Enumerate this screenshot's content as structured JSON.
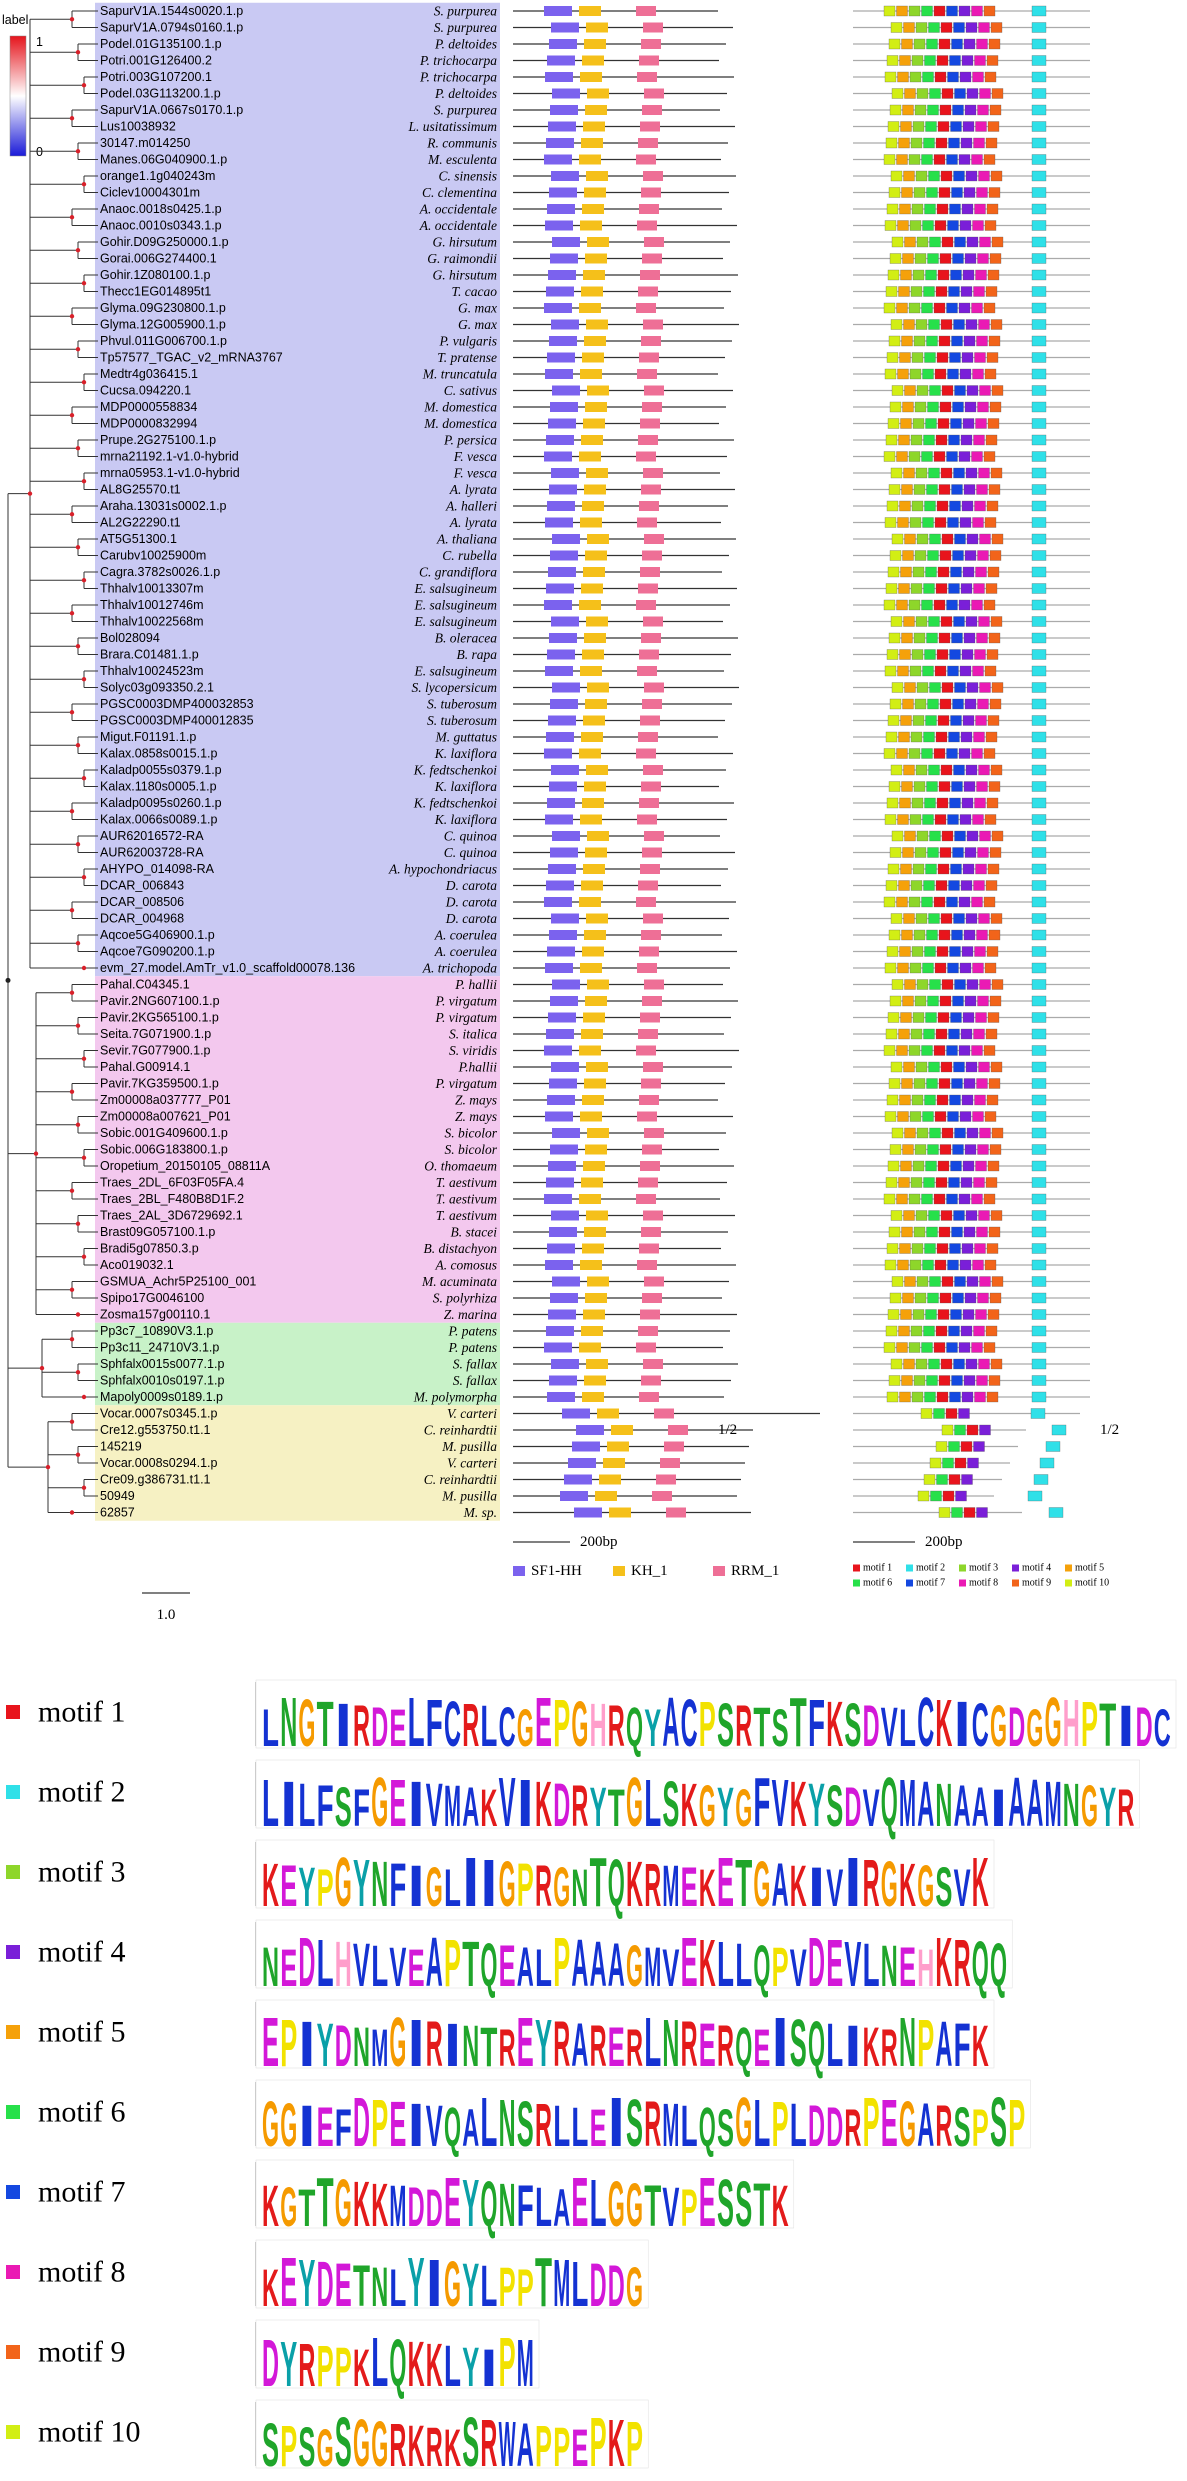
{
  "color_scale": {
    "title": "label",
    "max": 1,
    "min": 0
  },
  "groups": [
    {
      "color": "#c9c9f3",
      "rows": [
        {
          "gene": "SapurV1A.1544s0020.1.p",
          "species": "S. purpurea"
        },
        {
          "gene": "SapurV1A.0794s0160.1.p",
          "species": "S. purpurea"
        },
        {
          "gene": "Podel.01G135100.1.p",
          "species": "P. deltoides"
        },
        {
          "gene": "Potri.001G126400.2",
          "species": "P. trichocarpa"
        },
        {
          "gene": "Potri.003G107200.1",
          "species": "P. trichocarpa"
        },
        {
          "gene": "Podel.03G113200.1.p",
          "species": "P. deltoides"
        },
        {
          "gene": "SapurV1A.0667s0170.1.p",
          "species": "S. purpurea"
        },
        {
          "gene": "Lus10038932",
          "species": "L. usitatissimum"
        },
        {
          "gene": "30147.m014250",
          "species": "R. communis"
        },
        {
          "gene": "Manes.06G040900.1.p",
          "species": "M. esculenta"
        },
        {
          "gene": "orange1.1g040243m",
          "species": "C. sinensis"
        },
        {
          "gene": "Ciclev10004301m",
          "species": "C. clementina"
        },
        {
          "gene": "Anaoc.0018s0425.1.p",
          "species": "A. occidentale"
        },
        {
          "gene": "Anaoc.0010s0343.1.p",
          "species": "A. occidentale"
        },
        {
          "gene": "Gohir.D09G250000.1.p",
          "species": "G. hirsutum"
        },
        {
          "gene": "Gorai.006G274400.1",
          "species": "G. raimondii"
        },
        {
          "gene": "Gohir.1Z080100.1.p",
          "species": "G. hirsutum"
        },
        {
          "gene": "Thecc1EG014895t1",
          "species": "T. cacao"
        },
        {
          "gene": "Glyma.09G230800.1.p",
          "species": "G. max"
        },
        {
          "gene": "Glyma.12G005900.1.p",
          "species": "G. max"
        },
        {
          "gene": "Phvul.011G006700.1.p",
          "species": "P. vulgaris"
        },
        {
          "gene": "Tp57577_TGAC_v2_mRNA3767",
          "species": "T. pratense"
        },
        {
          "gene": "Medtr4g036415.1",
          "species": "M. truncatula"
        },
        {
          "gene": "Cucsa.094220.1",
          "species": "C. sativus"
        },
        {
          "gene": "MDP0000558834",
          "species": "M. domestica"
        },
        {
          "gene": "MDP0000832994",
          "species": "M. domestica"
        },
        {
          "gene": "Prupe.2G275100.1.p",
          "species": "P. persica"
        },
        {
          "gene": "mrna21192.1-v1.0-hybrid",
          "species": "F. vesca"
        },
        {
          "gene": "mrna05953.1-v1.0-hybrid",
          "species": "F. vesca"
        },
        {
          "gene": "AL8G25570.t1",
          "species": "A. lyrata"
        },
        {
          "gene": "Araha.13031s0002.1.p",
          "species": "A. halleri"
        },
        {
          "gene": "AL2G22290.t1",
          "species": "A. lyrata"
        },
        {
          "gene": "AT5G51300.1",
          "species": "A. thaliana"
        },
        {
          "gene": "Carubv10025900m",
          "species": "C. rubella"
        },
        {
          "gene": "Cagra.3782s0026.1.p",
          "species": "C. grandiflora"
        },
        {
          "gene": "Thhalv10013307m",
          "species": "E. salsugineum"
        },
        {
          "gene": "Thhalv10012746m",
          "species": "E. salsugineum"
        },
        {
          "gene": "Thhalv10022568m",
          "species": "E. salsugineum"
        },
        {
          "gene": "Bol028094",
          "species": "B. oleracea"
        },
        {
          "gene": "Brara.C01481.1.p",
          "species": "B. rapa"
        },
        {
          "gene": "Thhalv10024523m",
          "species": "E. salsugineum"
        },
        {
          "gene": "Solyc03g093350.2.1",
          "species": "S. lycopersicum"
        },
        {
          "gene": "PGSC0003DMP400032853",
          "species": "S. tuberosum"
        },
        {
          "gene": "PGSC0003DMP400012835",
          "species": "S. tuberosum"
        },
        {
          "gene": "Migut.F01191.1.p",
          "species": "M. guttatus"
        },
        {
          "gene": "Kalax.0858s0015.1.p",
          "species": "K. laxiflora"
        },
        {
          "gene": "Kaladp0055s0379.1.p",
          "species": "K. fedtschenkoi"
        },
        {
          "gene": "Kalax.1180s0005.1.p",
          "species": "K. laxiflora"
        },
        {
          "gene": "Kaladp0095s0260.1.p",
          "species": "K. fedtschenkoi"
        },
        {
          "gene": "Kalax.0066s0089.1.p",
          "species": "K. laxiflora"
        },
        {
          "gene": "AUR62016572-RA",
          "species": "C. quinoa"
        },
        {
          "gene": "AUR62003728-RA",
          "species": "C. quinoa"
        },
        {
          "gene": "AHYPO_014098-RA",
          "species": "A. hypochondriacus"
        },
        {
          "gene": "DCAR_006843",
          "species": "D. carota"
        },
        {
          "gene": "DCAR_008506",
          "species": "D. carota"
        },
        {
          "gene": "DCAR_004968",
          "species": "D. carota"
        },
        {
          "gene": "Aqcoe5G406900.1.p",
          "species": "A. coerulea"
        },
        {
          "gene": "Aqcoe7G090200.1.p",
          "species": "A. coerulea"
        },
        {
          "gene": "evm_27.model.AmTr_v1.0_scaffold00078.136",
          "species": "A. trichopoda"
        }
      ]
    },
    {
      "color": "#f3c8ee",
      "rows": [
        {
          "gene": "Pahal.C04345.1",
          "species": "P. hallii"
        },
        {
          "gene": "Pavir.2NG607100.1.p",
          "species": "P. virgatum"
        },
        {
          "gene": "Pavir.2KG565100.1.p",
          "species": "P. virgatum"
        },
        {
          "gene": "Seita.7G071900.1.p",
          "species": "S. italica"
        },
        {
          "gene": "Sevir.7G077900.1.p",
          "species": "S. viridis"
        },
        {
          "gene": "Pahal.G00914.1",
          "species": "P.hallii"
        },
        {
          "gene": "Pavir.7KG359500.1.p",
          "species": "P. virgatum"
        },
        {
          "gene": "Zm00008a037777_P01",
          "species": "Z. mays"
        },
        {
          "gene": "Zm00008a007621_P01",
          "species": "Z. mays"
        },
        {
          "gene": "Sobic.001G409600.1.p",
          "species": "S. bicolor"
        },
        {
          "gene": "Sobic.006G183800.1.p",
          "species": "S. bicolor"
        },
        {
          "gene": "Oropetium_20150105_08811A",
          "species": "O. thomaeum"
        },
        {
          "gene": "Traes_2DL_6F03F05FA.4",
          "species": "T. aestivum"
        },
        {
          "gene": "Traes_2BL_F480B8D1F.2",
          "species": "T. aestivum"
        },
        {
          "gene": "Traes_2AL_3D6729692.1",
          "species": "T. aestivum"
        },
        {
          "gene": "Brast09G057100.1.p",
          "species": "B. stacei"
        },
        {
          "gene": "Bradi5g07850.3.p",
          "species": "B. distachyon"
        },
        {
          "gene": "Aco019032.1",
          "species": "A. comosus"
        },
        {
          "gene": "GSMUA_Achr5P25100_001",
          "species": "M. acuminata"
        },
        {
          "gene": "Spipo17G0046100",
          "species": "S. polyrhiza"
        },
        {
          "gene": "Zosma157g00110.1",
          "species": "Z. marina"
        }
      ]
    },
    {
      "color": "#c8f2c8",
      "rows": [
        {
          "gene": "Pp3c7_10890V3.1.p",
          "species": "P. patens"
        },
        {
          "gene": "Pp3c11_24710V3.1.p",
          "species": "P. patens"
        },
        {
          "gene": "Sphfalx0015s0077.1.p",
          "species": "S. fallax"
        },
        {
          "gene": "Sphfalx0010s0197.1.p",
          "species": "S. fallax"
        },
        {
          "gene": "Mapoly0009s0189.1.p",
          "species": "M. polymorpha"
        }
      ]
    },
    {
      "color": "#f6f1c3",
      "rows": [
        {
          "gene": "Vocar.0007s0345.1.p",
          "species": "V. carteri"
        },
        {
          "gene": "Cre12.g553750.t1.1",
          "species": "C. reinhardtii"
        },
        {
          "gene": "145219",
          "species": "M. pusilla"
        },
        {
          "gene": "Vocar.0008s0294.1.p",
          "species": "V. carteri"
        },
        {
          "gene": "Cre09.g386731.t1.1",
          "species": "C. reinhardtii"
        },
        {
          "gene": "50949",
          "species": "M. pusilla"
        },
        {
          "gene": "62857",
          "species": "M. sp."
        }
      ]
    }
  ],
  "tree_scale": "1.0",
  "domain_scale": "200bp",
  "motif_scale": "200bp",
  "domain_break": "1/2",
  "motif_break": "1/2",
  "domains": [
    {
      "name": "SF1-HH",
      "color": "#7b62ee"
    },
    {
      "name": "KH_1",
      "color": "#f5c01a"
    },
    {
      "name": "RRM_1",
      "color": "#ee6f96"
    }
  ],
  "motifs": [
    {
      "name": "motif 1",
      "color": "#e8141c",
      "logo": "LNGTIRDELFCRLCGEPGHRQYACPSRTSTFKSDVLCKICGDGGHPTIDC"
    },
    {
      "name": "motif 2",
      "color": "#2fe0e8",
      "logo": "LILFSFGEIVMAKVIKDRYTGLSKGYGFVKYSDVQMANAAIAAMNGYR"
    },
    {
      "name": "motif 3",
      "color": "#8ed62a",
      "logo": "KEYPGYNFIGLIIGPRGNTQKRMEKETGAKIVIRGKGSVK"
    },
    {
      "name": "motif 4",
      "color": "#7a1fd8",
      "logo": "NEDLHVLVEAPTQEALPAAAGMVEKLLQPVDEVLNEHKRQQ"
    },
    {
      "name": "motif 5",
      "color": "#f5a10a",
      "logo": "EPIYDNMGIRINTREYRARERLNRERQEISQLIKRNPAFK"
    },
    {
      "name": "motif 6",
      "color": "#27e04a",
      "logo": "GGIEFDPEIVQALNSRLLEISRMLQSGLPLDDRPEGARSPSP"
    },
    {
      "name": "motif 7",
      "color": "#1448e0",
      "logo": "KGTTGKKMDDEYQNFLAELGGTVPESSTK"
    },
    {
      "name": "motif 8",
      "color": "#ea1ab4",
      "logo": "KEYDETNLYIGYLPPTMLDDG"
    },
    {
      "name": "motif 9",
      "color": "#f2641a",
      "logo": "DYRPPKLQKKLYIPM"
    },
    {
      "name": "motif 10",
      "color": "#d2ee14",
      "logo": "SPSGSGGRKRKSRWAPPEPKP"
    }
  ]
}
